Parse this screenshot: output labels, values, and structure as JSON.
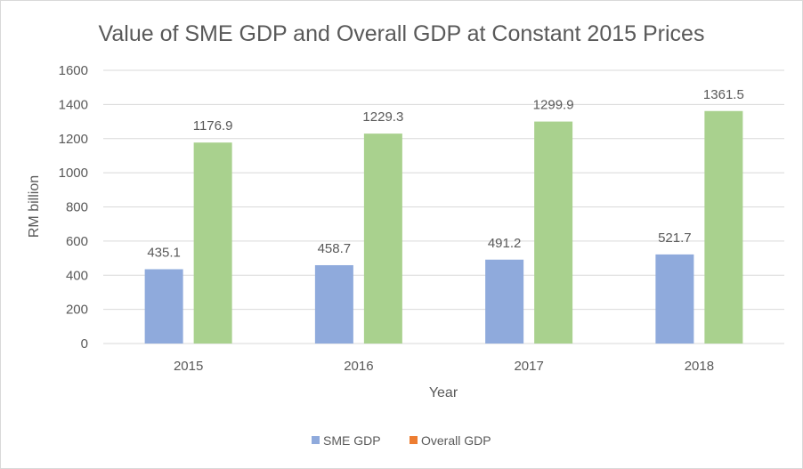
{
  "chart_data": {
    "type": "bar",
    "title": "Value of SME GDP and Overall GDP at Constant 2015 Prices",
    "xlabel": "Year",
    "ylabel": "RM billion",
    "categories": [
      "2015",
      "2016",
      "2017",
      "2018"
    ],
    "ylim": [
      0,
      1600
    ],
    "yticks": [
      0,
      200,
      400,
      600,
      800,
      1000,
      1200,
      1400,
      1600
    ],
    "grid": true,
    "legend_position": "bottom",
    "series": [
      {
        "name": "SME GDP",
        "values": [
          435.1,
          458.7,
          491.2,
          521.7
        ],
        "color": "#8faadc",
        "legend_color": "#8faadc"
      },
      {
        "name": "Overall GDP",
        "values": [
          1176.9,
          1229.3,
          1299.9,
          1361.5
        ],
        "color": "#a9d18e",
        "legend_color": "#ed7d31"
      }
    ]
  }
}
